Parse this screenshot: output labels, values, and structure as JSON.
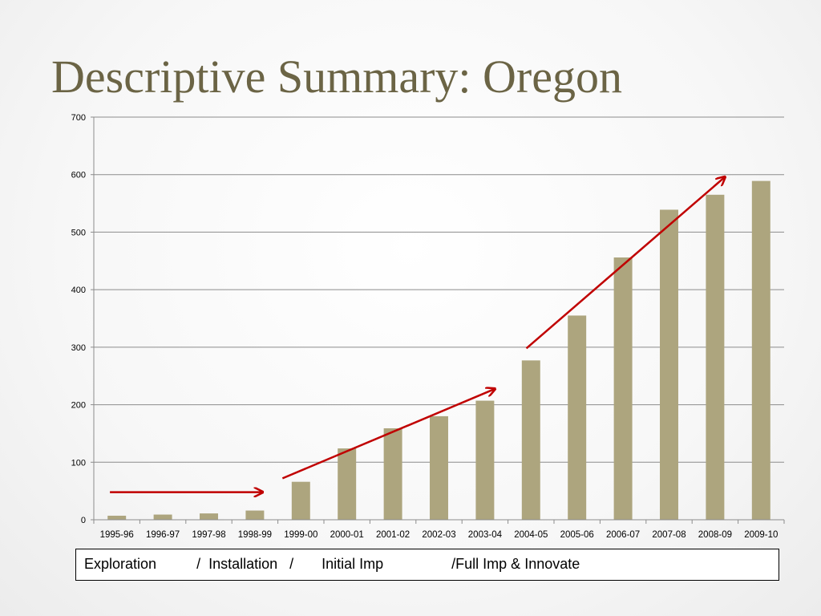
{
  "slide": {
    "title": "Descriptive Summary: Oregon",
    "phase_text": "Exploration          /  Installation   /       Initial Imp                 /Full Imp & Innovate"
  },
  "chart_data": {
    "type": "bar",
    "categories": [
      "1995-96",
      "1996-97",
      "1997-98",
      "1998-99",
      "1999-00",
      "2000-01",
      "2001-02",
      "2002-03",
      "2003-04",
      "2004-05",
      "2005-06",
      "2006-07",
      "2007-08",
      "2008-09",
      "2009-10"
    ],
    "values": [
      7,
      9,
      11,
      16,
      66,
      124,
      159,
      180,
      207,
      277,
      355,
      456,
      539,
      565,
      589
    ],
    "title": "",
    "xlabel": "",
    "ylabel": "",
    "ylim": [
      0,
      700
    ],
    "yticks": [
      0,
      100,
      200,
      300,
      400,
      500,
      600,
      700
    ],
    "grid": true,
    "legend": "none",
    "bar_color": "#ada57e",
    "arrow_color": "#c00000",
    "arrows": [
      {
        "from": [
          -0.15,
          48
        ],
        "to": [
          3.15,
          48
        ]
      },
      {
        "from": [
          3.6,
          72
        ],
        "to": [
          8.2,
          227
        ]
      },
      {
        "from": [
          8.9,
          298
        ],
        "to": [
          13.2,
          595
        ]
      }
    ]
  }
}
